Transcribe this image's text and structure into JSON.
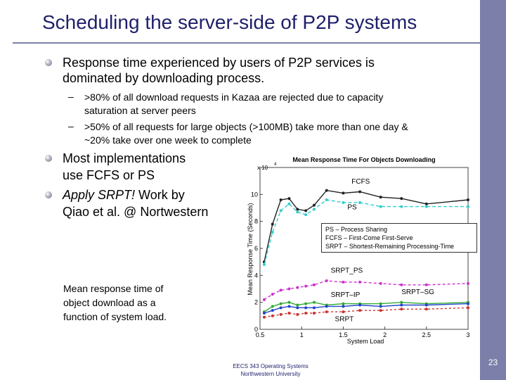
{
  "slide": {
    "title": "Scheduling the server-side of P2P systems",
    "page_number": "23",
    "footer": {
      "course": "EECS 343 Operating Systems",
      "school": "Northwestern University"
    }
  },
  "content": {
    "bullet1": {
      "text_line1": "Response time experienced by users of P2P services is",
      "text_line2": "dominated by downloading process.",
      "sub1_line1": ">80% of all download requests in Kazaa are rejected due to capacity",
      "sub1_line2": "saturation at server peers",
      "sub2_line1": ">50% of all requests for large objects (>100MB) take more than one day &",
      "sub2_line2": "~20% take over one week to complete"
    },
    "bullet2": {
      "line1": "Most implementations",
      "line2": "use FCFS or PS"
    },
    "bullet3": {
      "italic": "Apply SRPT!",
      "rest": " Work by",
      "line2": "Qiao et al. @ Nortwestern"
    },
    "caption": {
      "line1": "Mean response time of",
      "line2": "object download as a",
      "line3": "function of system load."
    },
    "dash_symbol": "–"
  },
  "chart_data": {
    "type": "line",
    "title": "Mean Response Time For Objects Downloading",
    "xlabel": "System Load",
    "ylabel": "Mean Response Time (Seconds)",
    "y_multiplier": "x 10",
    "y_exponent": "4",
    "xlim": [
      0.5,
      3
    ],
    "ylim": [
      0,
      12
    ],
    "x_ticks": [
      0.5,
      1,
      1.5,
      2,
      2.5,
      3
    ],
    "x_tick_labels": [
      "0.5",
      "1",
      "1.5",
      "2",
      "2.5",
      "3"
    ],
    "y_ticks": [
      0,
      2,
      4,
      6,
      8,
      10
    ],
    "y_tick_labels": [
      "0",
      "2",
      "4",
      "6",
      "8",
      "10"
    ],
    "series": [
      {
        "name": "FCFS",
        "color": "#222222",
        "dash": "",
        "x": [
          0.55,
          0.65,
          0.75,
          0.85,
          0.95,
          1.05,
          1.15,
          1.3,
          1.5,
          1.7,
          1.95,
          2.2,
          2.5,
          3.0
        ],
        "y": [
          5.0,
          7.8,
          9.6,
          9.7,
          8.9,
          8.8,
          9.2,
          10.3,
          10.1,
          10.2,
          9.8,
          9.7,
          9.3,
          9.6
        ]
      },
      {
        "name": "PS",
        "color": "#33cccc",
        "dash": "5,3",
        "x": [
          0.55,
          0.65,
          0.75,
          0.85,
          0.95,
          1.05,
          1.15,
          1.3,
          1.5,
          1.7,
          1.95,
          2.2,
          2.5,
          3.0
        ],
        "y": [
          4.8,
          7.2,
          8.8,
          9.3,
          8.7,
          8.5,
          8.9,
          9.6,
          9.4,
          9.4,
          9.1,
          9.1,
          9.1,
          9.1
        ]
      },
      {
        "name": "SRPT_PS",
        "color": "#cc33cc",
        "dash": "4,3",
        "x": [
          0.55,
          0.65,
          0.75,
          0.85,
          0.95,
          1.05,
          1.15,
          1.3,
          1.5,
          1.7,
          1.95,
          2.2,
          2.5,
          3.0
        ],
        "y": [
          2.2,
          2.6,
          2.9,
          3.0,
          3.1,
          3.2,
          3.3,
          3.6,
          3.5,
          3.5,
          3.4,
          3.3,
          3.3,
          3.4
        ]
      },
      {
        "name": "SRPT_IP",
        "color": "#33aa33",
        "dash": "",
        "x": [
          0.55,
          0.65,
          0.75,
          0.85,
          0.95,
          1.05,
          1.15,
          1.3,
          1.5,
          1.7,
          1.95,
          2.2,
          2.5,
          3.0
        ],
        "y": [
          1.3,
          1.7,
          1.9,
          2.0,
          1.8,
          1.9,
          2.0,
          1.8,
          1.9,
          1.9,
          1.9,
          2.0,
          1.9,
          2.0
        ]
      },
      {
        "name": "SRPT_SG",
        "color": "#2244cc",
        "dash": "",
        "x": [
          0.55,
          0.65,
          0.75,
          0.85,
          0.95,
          1.05,
          1.15,
          1.3,
          1.5,
          1.7,
          1.95,
          2.2,
          2.5,
          3.0
        ],
        "y": [
          1.2,
          1.4,
          1.6,
          1.7,
          1.6,
          1.6,
          1.6,
          1.7,
          1.7,
          1.8,
          1.7,
          1.8,
          1.8,
          1.9
        ]
      },
      {
        "name": "SRPT",
        "color": "#cc3333",
        "dash": "3,3",
        "x": [
          0.55,
          0.65,
          0.75,
          0.85,
          0.95,
          1.05,
          1.15,
          1.3,
          1.5,
          1.7,
          1.95,
          2.2,
          2.5,
          3.0
        ],
        "y": [
          0.9,
          1.0,
          1.1,
          1.2,
          1.1,
          1.2,
          1.2,
          1.3,
          1.3,
          1.4,
          1.4,
          1.5,
          1.5,
          1.6
        ]
      }
    ],
    "labels": {
      "fcfs": {
        "text": "FCFS",
        "x": 1.6,
        "y": 10.8
      },
      "ps": {
        "text": "PS",
        "x": 1.55,
        "y": 8.9
      },
      "srpt_ps": {
        "text": "SRPT_PS",
        "x": 1.35,
        "y": 4.2
      },
      "srpt_ip": {
        "text": "SRPT–IP",
        "x": 1.35,
        "y": 2.4
      },
      "srpt_sg": {
        "text": "SRPT–SG",
        "x": 2.2,
        "y": 2.6
      },
      "srpt": {
        "text": "SRPT",
        "x": 1.4,
        "y": 0.6
      }
    },
    "legend": {
      "line1": "PS – Process Sharing",
      "line2": "FCFS – First-Come First-Serve",
      "line3": "SRPT – Shortest-Remaining Processing-Time"
    }
  }
}
